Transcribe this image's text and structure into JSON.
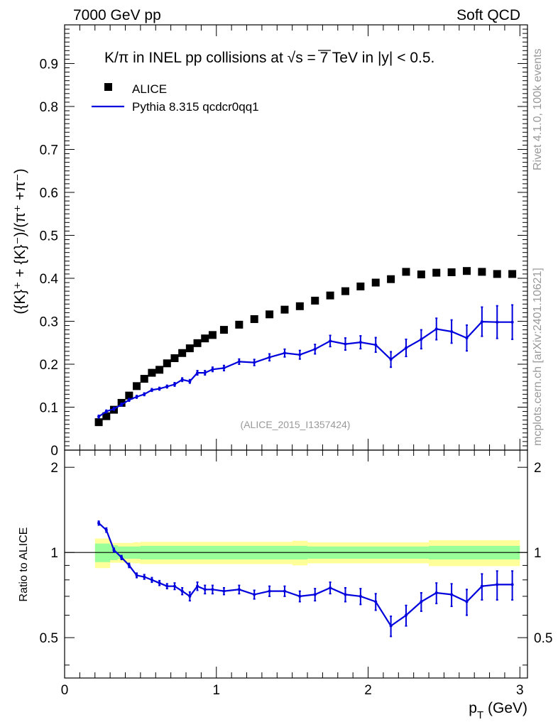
{
  "header": {
    "left": "7000 GeV pp",
    "right": "Soft QCD"
  },
  "side_labels": {
    "rivet": "Rivet 4.1.0,  100k events",
    "mcplots": "mcplots.cern.ch [arXiv:2401.10621]"
  },
  "colors": {
    "mc_line": "#0000dd",
    "data_marker": "#000000",
    "band_inner": "#99ff99",
    "band_outer": "#ffff99",
    "watermark": "#999999"
  },
  "chart_data": [
    {
      "type": "scatter",
      "panel": "main",
      "title_parts": {
        "pre": "K/π in INEL pp collisions at ",
        "sqrt_s": "s",
        "post": " =  7 TeV in |y| < 0.5."
      },
      "ylabel": "({K}⁺ + {K}⁻)/(π⁺ +π⁻)",
      "xlabel": "",
      "xlim": [
        0,
        3.05
      ],
      "ylim": [
        0,
        0.99
      ],
      "yticks": [
        0,
        0.1,
        0.2,
        0.3,
        0.4,
        0.5,
        0.6,
        0.7,
        0.8,
        0.9
      ],
      "ytick_labels": [
        "0",
        "0.1",
        "0.2",
        "0.3",
        "0.4",
        "0.5",
        "0.6",
        "0.7",
        "0.8",
        "0.9"
      ],
      "legend": [
        {
          "label": "ALICE",
          "kind": "marker"
        },
        {
          "label": "Pythia 8.315 qcdcr0qq1",
          "kind": "line"
        }
      ],
      "watermark": "(ALICE_2015_I1357424)",
      "series": [
        {
          "name": "ALICE",
          "x": [
            0.225,
            0.275,
            0.325,
            0.375,
            0.425,
            0.475,
            0.525,
            0.575,
            0.625,
            0.675,
            0.725,
            0.775,
            0.825,
            0.875,
            0.925,
            0.975,
            1.05,
            1.15,
            1.25,
            1.35,
            1.45,
            1.55,
            1.65,
            1.75,
            1.85,
            1.95,
            2.05,
            2.15,
            2.25,
            2.35,
            2.45,
            2.55,
            2.65,
            2.75,
            2.85,
            2.95
          ],
          "y": [
            0.065,
            0.079,
            0.094,
            0.11,
            0.127,
            0.149,
            0.166,
            0.18,
            0.187,
            0.202,
            0.214,
            0.226,
            0.237,
            0.249,
            0.26,
            0.268,
            0.28,
            0.292,
            0.305,
            0.316,
            0.327,
            0.335,
            0.348,
            0.36,
            0.37,
            0.381,
            0.39,
            0.398,
            0.415,
            0.409,
            0.413,
            0.414,
            0.417,
            0.415,
            0.41,
            0.41
          ]
        },
        {
          "name": "Pythia 8.315 qcdcr0qq1",
          "x": [
            0.225,
            0.275,
            0.325,
            0.375,
            0.425,
            0.475,
            0.525,
            0.575,
            0.625,
            0.675,
            0.725,
            0.775,
            0.825,
            0.875,
            0.925,
            0.975,
            1.05,
            1.15,
            1.25,
            1.35,
            1.45,
            1.55,
            1.65,
            1.75,
            1.85,
            1.95,
            2.05,
            2.15,
            2.25,
            2.35,
            2.45,
            2.55,
            2.65,
            2.75,
            2.85,
            2.95
          ],
          "y": [
            0.078,
            0.09,
            0.096,
            0.106,
            0.117,
            0.124,
            0.13,
            0.14,
            0.143,
            0.148,
            0.153,
            0.164,
            0.16,
            0.18,
            0.18,
            0.188,
            0.191,
            0.206,
            0.204,
            0.216,
            0.226,
            0.222,
            0.235,
            0.254,
            0.247,
            0.251,
            0.245,
            0.211,
            0.238,
            0.258,
            0.282,
            0.276,
            0.261,
            0.299,
            0.298,
            0.298
          ],
          "yerr": [
            0.003,
            0.003,
            0.003,
            0.003,
            0.003,
            0.003,
            0.003,
            0.003,
            0.003,
            0.003,
            0.004,
            0.004,
            0.004,
            0.005,
            0.005,
            0.005,
            0.006,
            0.006,
            0.007,
            0.008,
            0.009,
            0.01,
            0.011,
            0.013,
            0.014,
            0.015,
            0.017,
            0.018,
            0.02,
            0.022,
            0.025,
            0.027,
            0.03,
            0.034,
            0.038,
            0.04
          ]
        }
      ]
    },
    {
      "type": "line",
      "panel": "ratio",
      "ylabel": "Ratio to ALICE",
      "xlabel": "p_T (GeV)",
      "xlabel_parts": {
        "p": "p",
        "sub": "T",
        "unit": " (GeV)"
      },
      "xlim": [
        0,
        3.05
      ],
      "ylim": [
        0.36,
        2.3
      ],
      "xticks": [
        0,
        1,
        2,
        3
      ],
      "xtick_labels": [
        "0",
        "1",
        "2",
        "3"
      ],
      "yticks": [
        0.5,
        1,
        2
      ],
      "ytick_labels": [
        "0.5",
        "1",
        "2"
      ],
      "band_edges": [
        0.2,
        0.25,
        0.3,
        0.35,
        0.4,
        0.45,
        0.5,
        0.55,
        0.6,
        0.65,
        0.7,
        0.75,
        0.8,
        0.85,
        0.9,
        0.95,
        1.0,
        1.1,
        1.2,
        1.3,
        1.4,
        1.5,
        1.6,
        1.7,
        1.8,
        1.9,
        2.0,
        2.1,
        2.2,
        2.3,
        2.4,
        2.5,
        2.6,
        2.7,
        2.8,
        2.9,
        3.0
      ],
      "band_inner_half": [
        0.075,
        0.075,
        0.06,
        0.05,
        0.05,
        0.05,
        0.055,
        0.055,
        0.055,
        0.055,
        0.055,
        0.055,
        0.055,
        0.055,
        0.055,
        0.055,
        0.055,
        0.055,
        0.055,
        0.055,
        0.055,
        0.055,
        0.05,
        0.05,
        0.05,
        0.05,
        0.05,
        0.05,
        0.05,
        0.05,
        0.055,
        0.055,
        0.055,
        0.055,
        0.055,
        0.055
      ],
      "band_outer_half": [
        0.12,
        0.12,
        0.08,
        0.08,
        0.08,
        0.085,
        0.09,
        0.09,
        0.09,
        0.09,
        0.09,
        0.09,
        0.09,
        0.09,
        0.09,
        0.09,
        0.09,
        0.09,
        0.09,
        0.09,
        0.09,
        0.1,
        0.085,
        0.085,
        0.085,
        0.085,
        0.085,
        0.085,
        0.085,
        0.085,
        0.105,
        0.105,
        0.105,
        0.105,
        0.105,
        0.105
      ],
      "series": [
        {
          "name": "Pythia 8.315 qcdcr0qq1 / ALICE",
          "x": [
            0.225,
            0.275,
            0.325,
            0.375,
            0.425,
            0.475,
            0.525,
            0.575,
            0.625,
            0.675,
            0.725,
            0.775,
            0.825,
            0.875,
            0.925,
            0.975,
            1.05,
            1.15,
            1.25,
            1.35,
            1.45,
            1.55,
            1.65,
            1.75,
            1.85,
            1.95,
            2.05,
            2.15,
            2.25,
            2.35,
            2.45,
            2.55,
            2.65,
            2.75,
            2.85,
            2.95
          ],
          "y": [
            1.27,
            1.2,
            1.02,
            0.96,
            0.9,
            0.83,
            0.82,
            0.8,
            0.78,
            0.76,
            0.76,
            0.73,
            0.7,
            0.76,
            0.74,
            0.74,
            0.73,
            0.74,
            0.71,
            0.73,
            0.73,
            0.7,
            0.71,
            0.75,
            0.71,
            0.7,
            0.67,
            0.55,
            0.6,
            0.67,
            0.72,
            0.71,
            0.67,
            0.76,
            0.77,
            0.77
          ],
          "yerr": [
            0.02,
            0.02,
            0.015,
            0.015,
            0.015,
            0.015,
            0.015,
            0.015,
            0.015,
            0.015,
            0.02,
            0.02,
            0.025,
            0.025,
            0.025,
            0.025,
            0.02,
            0.025,
            0.025,
            0.03,
            0.03,
            0.03,
            0.035,
            0.035,
            0.04,
            0.045,
            0.045,
            0.045,
            0.05,
            0.05,
            0.06,
            0.065,
            0.07,
            0.08,
            0.09,
            0.09
          ]
        }
      ]
    }
  ]
}
